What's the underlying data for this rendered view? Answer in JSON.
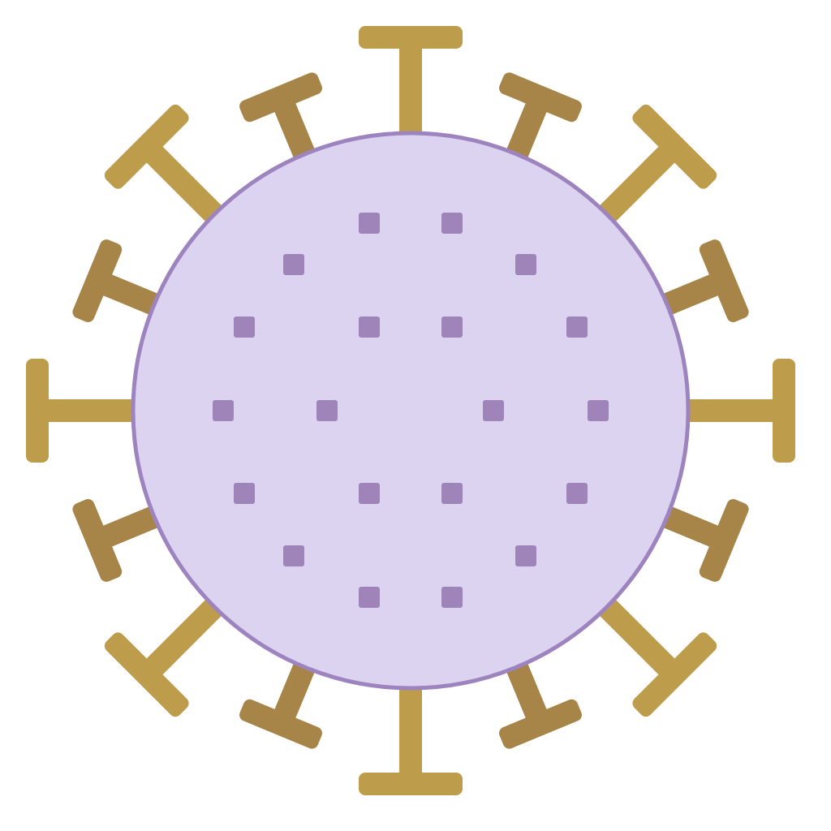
{
  "icon": {
    "name": "virus-icon",
    "colors": {
      "background": "#ffffff",
      "body_fill": "#dcd3f1",
      "body_stroke": "#9d84be",
      "dot": "#9e84b8",
      "spike_light": "#bd9c4c",
      "spike_dark": "#a78548"
    }
  }
}
